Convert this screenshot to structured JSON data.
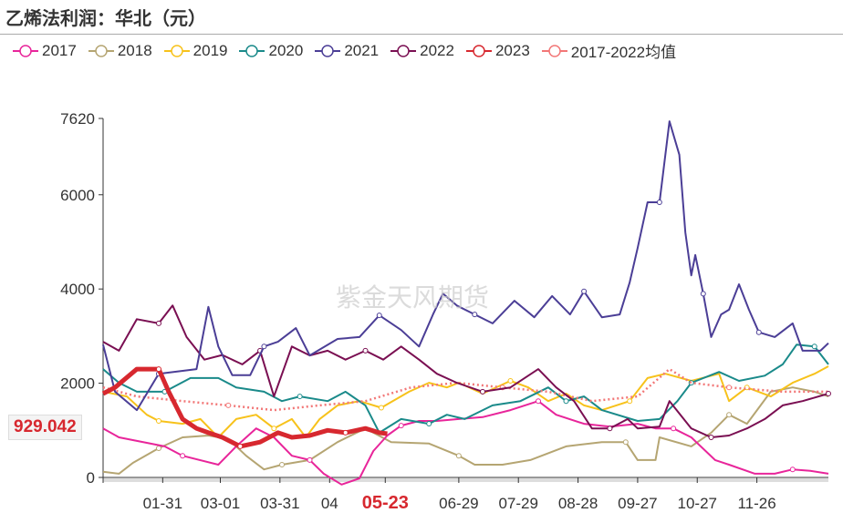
{
  "title": "乙烯法利润：华北（元）",
  "watermark": "紫金天风期货",
  "pointer_label": "929.042",
  "chart_data": {
    "type": "line",
    "title": "乙烯法利润：华北（元）",
    "xlabel": "",
    "ylabel": "",
    "ylim": [
      0,
      7620
    ],
    "xlim": [
      0,
      365
    ],
    "yticks": [
      "7620",
      "6000",
      "4000",
      "2000",
      "0"
    ],
    "ytick_values": [
      7620,
      6000,
      4000,
      2000,
      0
    ],
    "xticks": [
      {
        "label": "01-31",
        "day": 30
      },
      {
        "label": "03-01",
        "day": 59
      },
      {
        "label": "03-31",
        "day": 89
      },
      {
        "label": "04",
        "day": 114
      },
      {
        "label": "05-23",
        "day": 142,
        "highlight": true
      },
      {
        "label": "06-29",
        "day": 179
      },
      {
        "label": "07-29",
        "day": 209
      },
      {
        "label": "08-28",
        "day": 239
      },
      {
        "label": "09-27",
        "day": 269
      },
      {
        "label": "10-27",
        "day": 299
      },
      {
        "label": "11-26",
        "day": 329
      }
    ],
    "legend_position": "top",
    "series": [
      {
        "name": "2017",
        "color": "#e8259a",
        "days": [
          0,
          8,
          31,
          40,
          58,
          67,
          77,
          86,
          95,
          104,
          111,
          120,
          129,
          136,
          143,
          150,
          159,
          168,
          179,
          191,
          205,
          219,
          228,
          242,
          255,
          269,
          278,
          287,
          296,
          308,
          315,
          328,
          338,
          347,
          356,
          365
        ],
        "values": [
          1040,
          850,
          660,
          460,
          270,
          660,
          1040,
          850,
          460,
          370,
          80,
          -150,
          -20,
          560,
          890,
          1100,
          1200,
          1200,
          1240,
          1280,
          1430,
          1620,
          1330,
          1140,
          1080,
          1140,
          1040,
          1040,
          850,
          370,
          270,
          80,
          80,
          170,
          140,
          80
        ]
      },
      {
        "name": "2018",
        "color": "#b5a572",
        "days": [
          0,
          8,
          15,
          28,
          40,
          53,
          63,
          72,
          81,
          90,
          104,
          118,
          132,
          145,
          164,
          179,
          187,
          201,
          215,
          233,
          251,
          263,
          269,
          278,
          280,
          296,
          306,
          315,
          324,
          336,
          347,
          358,
          365
        ],
        "values": [
          120,
          80,
          310,
          620,
          850,
          890,
          820,
          460,
          170,
          270,
          370,
          750,
          1040,
          750,
          720,
          460,
          270,
          270,
          370,
          660,
          750,
          750,
          370,
          370,
          850,
          660,
          950,
          1330,
          1140,
          1820,
          1910,
          1820,
          1720
        ]
      },
      {
        "name": "2019",
        "color": "#f7c21b",
        "days": [
          0,
          12,
          22,
          28,
          40,
          49,
          58,
          67,
          77,
          86,
          95,
          102,
          109,
          118,
          129,
          140,
          154,
          164,
          173,
          179,
          191,
          205,
          214,
          224,
          233,
          242,
          251,
          265,
          274,
          283,
          296,
          310,
          315,
          324,
          336,
          347,
          358,
          365
        ],
        "values": [
          1820,
          1720,
          1330,
          1200,
          1140,
          1240,
          850,
          1240,
          1330,
          1040,
          1240,
          850,
          1240,
          1530,
          1620,
          1480,
          1820,
          2010,
          1910,
          2010,
          1780,
          2050,
          1910,
          1620,
          1780,
          1530,
          1430,
          1620,
          2110,
          2200,
          2050,
          2200,
          1620,
          1910,
          1720,
          2010,
          2200,
          2360
        ]
      },
      {
        "name": "2020",
        "color": "#1a8a8a",
        "days": [
          0,
          8,
          17,
          31,
          44,
          58,
          67,
          81,
          90,
          99,
          113,
          122,
          132,
          139,
          150,
          164,
          173,
          182,
          196,
          210,
          224,
          233,
          242,
          251,
          269,
          280,
          289,
          296,
          310,
          320,
          333,
          342,
          349,
          358,
          365
        ],
        "values": [
          2300,
          2010,
          1820,
          1820,
          2110,
          2110,
          1910,
          1820,
          1620,
          1720,
          1620,
          1820,
          1530,
          950,
          1240,
          1140,
          1330,
          1240,
          1530,
          1620,
          1910,
          1620,
          1720,
          1430,
          1200,
          1240,
          1620,
          2010,
          2240,
          2050,
          2160,
          2400,
          2820,
          2780,
          2400
        ]
      },
      {
        "name": "2021",
        "color": "#4b3e96",
        "days": [
          0,
          6,
          17,
          28,
          47,
          53,
          58,
          65,
          74,
          81,
          88,
          97,
          104,
          118,
          129,
          139,
          150,
          159,
          166,
          171,
          178,
          187,
          196,
          207,
          217,
          226,
          235,
          242,
          251,
          260,
          265,
          269,
          274,
          280,
          285,
          290,
          293,
          296,
          298,
          302,
          306,
          311,
          315,
          320,
          325,
          330,
          338,
          347,
          352,
          361,
          365
        ],
        "values": [
          2820,
          1820,
          1430,
          2200,
          2300,
          3620,
          2780,
          2170,
          2170,
          2780,
          2880,
          3170,
          2590,
          2940,
          2980,
          3440,
          3130,
          2780,
          3460,
          3900,
          3650,
          3460,
          3270,
          3750,
          3400,
          3850,
          3460,
          3950,
          3400,
          3460,
          4140,
          4870,
          5840,
          5840,
          7560,
          6850,
          5200,
          4290,
          4720,
          3900,
          2980,
          3460,
          3560,
          4100,
          3560,
          3080,
          2980,
          3270,
          2690,
          2690,
          2850
        ]
      },
      {
        "name": "2022",
        "color": "#7a0f52",
        "days": [
          0,
          8,
          17,
          28,
          35,
          42,
          51,
          60,
          70,
          79,
          86,
          95,
          104,
          113,
          122,
          132,
          141,
          150,
          159,
          168,
          178,
          191,
          205,
          219,
          228,
          237,
          246,
          255,
          264,
          269,
          280,
          285,
          296,
          306,
          315,
          324,
          333,
          342,
          352,
          365
        ],
        "values": [
          2880,
          2690,
          3360,
          3270,
          3650,
          2980,
          2500,
          2600,
          2400,
          2690,
          1720,
          2780,
          2590,
          2690,
          2500,
          2690,
          2500,
          2780,
          2500,
          2200,
          2010,
          1820,
          1910,
          2300,
          1910,
          1620,
          1040,
          1040,
          1240,
          1040,
          1080,
          1620,
          1040,
          850,
          890,
          1040,
          1240,
          1530,
          1620,
          1780
        ]
      },
      {
        "name": "2023",
        "color": "#d7282f",
        "days": [
          0,
          6,
          17,
          28,
          33,
          40,
          47,
          53,
          60,
          69,
          79,
          88,
          95,
          104,
          113,
          122,
          132,
          139,
          143
        ],
        "values": [
          1780,
          1910,
          2300,
          2300,
          1820,
          1240,
          1040,
          950,
          850,
          660,
          750,
          950,
          850,
          890,
          1000,
          950,
          1040,
          950,
          929.042
        ]
      },
      {
        "name": "2017-2022均值",
        "color": "#f27777",
        "dashed": true,
        "days": [
          0,
          17,
          40,
          63,
          86,
          109,
          132,
          155,
          178,
          201,
          224,
          246,
          269,
          285,
          296,
          315,
          342,
          365
        ],
        "values": [
          1910,
          1720,
          1620,
          1530,
          1430,
          1530,
          1620,
          1910,
          2010,
          1910,
          1820,
          1620,
          1720,
          2300,
          2010,
          1910,
          1820,
          1820
        ]
      }
    ]
  }
}
